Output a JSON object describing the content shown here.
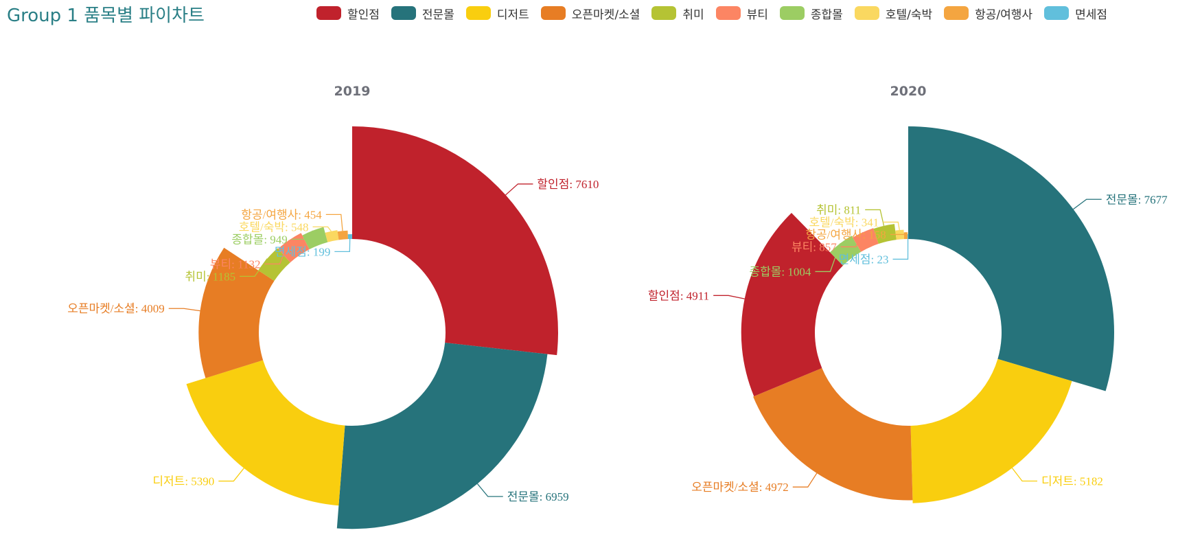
{
  "page": {
    "title": "Group 1 품목별 파이차트"
  },
  "legend": [
    {
      "label": "할인점",
      "color": "#c0222c"
    },
    {
      "label": "전문몰",
      "color": "#26737b"
    },
    {
      "label": "디저트",
      "color": "#f9ce0f"
    },
    {
      "label": "오픈마켓/소셜",
      "color": "#e77d24"
    },
    {
      "label": "취미",
      "color": "#b5c334"
    },
    {
      "label": "뷰티",
      "color": "#fc8563"
    },
    {
      "label": "종합몰",
      "color": "#9ccd63"
    },
    {
      "label": "호텔/숙박",
      "color": "#fad860"
    },
    {
      "label": "항공/여행사",
      "color": "#f4a540"
    },
    {
      "label": "면세점",
      "color": "#61bfdc"
    }
  ],
  "chart_data": [
    {
      "type": "pie",
      "title": "2019",
      "rose": "radius",
      "slices": [
        {
          "name": "할인점",
          "value": 7610
        },
        {
          "name": "전문몰",
          "value": 6959
        },
        {
          "name": "디저트",
          "value": 5390
        },
        {
          "name": "오픈마켓/소셜",
          "value": 4009
        },
        {
          "name": "취미",
          "value": 1185
        },
        {
          "name": "뷰티",
          "value": 1132
        },
        {
          "name": "종합몰",
          "value": 949
        },
        {
          "name": "호텔/숙박",
          "value": 548
        },
        {
          "name": "항공/여행사",
          "value": 454
        },
        {
          "name": "면세점",
          "value": 199
        }
      ]
    },
    {
      "type": "pie",
      "title": "2020",
      "rose": "radius",
      "slices": [
        {
          "name": "전문몰",
          "value": 7677
        },
        {
          "name": "디저트",
          "value": 5182
        },
        {
          "name": "오픈마켓/소셜",
          "value": 4972
        },
        {
          "name": "할인점",
          "value": 4911
        },
        {
          "name": "종합몰",
          "value": 1004
        },
        {
          "name": "뷰티",
          "value": 857
        },
        {
          "name": "취미",
          "value": 811
        },
        {
          "name": "호텔/숙박",
          "value": 341
        },
        {
          "name": "항공/여행사",
          "value": 158
        },
        {
          "name": "면세점",
          "value": 23
        }
      ]
    }
  ]
}
